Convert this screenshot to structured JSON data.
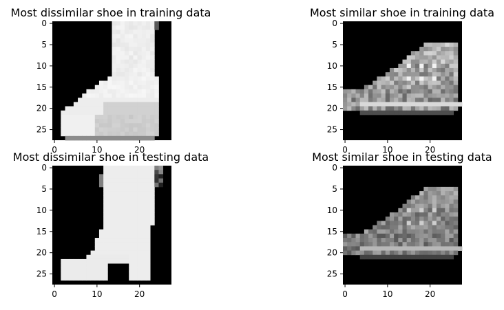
{
  "chart_data": [
    {
      "type": "image",
      "title": "Most dissimilar shoe in training data",
      "colormap": "gray",
      "image_size": [
        28,
        28
      ],
      "x_ticks": [
        {
          "v": 0,
          "label": "0"
        },
        {
          "v": 10,
          "label": "10"
        },
        {
          "v": 20,
          "label": "20"
        }
      ],
      "y_ticks": [
        {
          "v": 0,
          "label": "0"
        },
        {
          "v": 5,
          "label": "5"
        },
        {
          "v": 10,
          "label": "10"
        },
        {
          "v": 15,
          "label": "15"
        },
        {
          "v": 20,
          "label": "20"
        },
        {
          "v": 25,
          "label": "25"
        }
      ],
      "shape": "ankle-boot"
    },
    {
      "type": "image",
      "title": "Most similar shoe in training data",
      "colormap": "gray",
      "image_size": [
        28,
        28
      ],
      "x_ticks": [
        {
          "v": 0,
          "label": "0"
        },
        {
          "v": 10,
          "label": "10"
        },
        {
          "v": 20,
          "label": "20"
        }
      ],
      "y_ticks": [
        {
          "v": 0,
          "label": "0"
        },
        {
          "v": 5,
          "label": "5"
        },
        {
          "v": 10,
          "label": "10"
        },
        {
          "v": 15,
          "label": "15"
        },
        {
          "v": 20,
          "label": "20"
        },
        {
          "v": 25,
          "label": "25"
        }
      ],
      "shape": "high-top-sneaker"
    },
    {
      "type": "image",
      "title": "Most dissimilar shoe in testing data",
      "colormap": "gray",
      "image_size": [
        28,
        28
      ],
      "x_ticks": [
        {
          "v": 0,
          "label": "0"
        },
        {
          "v": 10,
          "label": "10"
        },
        {
          "v": 20,
          "label": "20"
        }
      ],
      "y_ticks": [
        {
          "v": 0,
          "label": "0"
        },
        {
          "v": 5,
          "label": "5"
        },
        {
          "v": 10,
          "label": "10"
        },
        {
          "v": 15,
          "label": "15"
        },
        {
          "v": 20,
          "label": "20"
        },
        {
          "v": 25,
          "label": "25"
        }
      ],
      "shape": "heeled-boot"
    },
    {
      "type": "image",
      "title": "Most similar shoe in testing data",
      "colormap": "gray",
      "image_size": [
        28,
        28
      ],
      "x_ticks": [
        {
          "v": 0,
          "label": "0"
        },
        {
          "v": 10,
          "label": "10"
        },
        {
          "v": 20,
          "label": "20"
        }
      ],
      "y_ticks": [
        {
          "v": 0,
          "label": "0"
        },
        {
          "v": 5,
          "label": "5"
        },
        {
          "v": 10,
          "label": "10"
        },
        {
          "v": 15,
          "label": "15"
        },
        {
          "v": 20,
          "label": "20"
        },
        {
          "v": 25,
          "label": "25"
        }
      ],
      "shape": "high-top-sneaker-test"
    }
  ]
}
